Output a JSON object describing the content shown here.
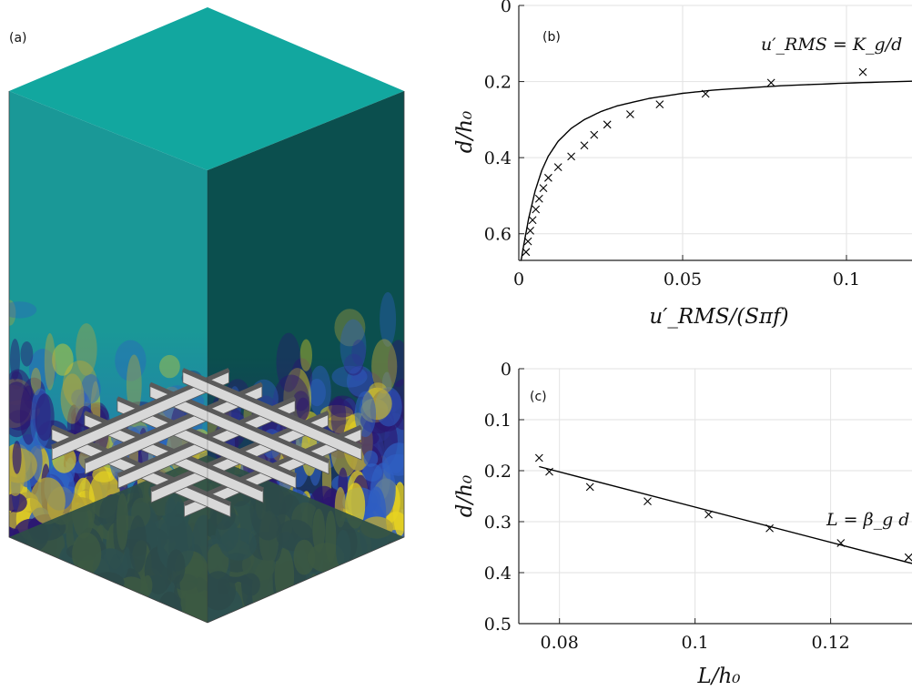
{
  "panel_a": {
    "label": "(a)",
    "colors": {
      "top_face": "#12a79f",
      "left_face": "#1a9897",
      "right_face": "#0b4f4e",
      "bottom_face": "#2c4e45",
      "turbulence_dark": "#2b1670",
      "turbulence_mid": "#2f5ec2",
      "turbulence_warm": "#b6a63a",
      "turbulence_hot": "#e7d320",
      "grid_light": "#d8d8d8",
      "grid_dark": "#5a5a5a"
    }
  },
  "chart_data": [
    {
      "type": "scatter",
      "panel_label": "(b)",
      "xlabel": "u′_RMS/(Sπf)",
      "ylabel": "d/h₀",
      "xlim": [
        0,
        0.12
      ],
      "ylim": [
        0.67,
        0
      ],
      "y_reversed": true,
      "xticks": [
        0,
        0.05,
        0.1
      ],
      "xtick_labels": [
        "0",
        "0.05",
        "0.1"
      ],
      "yticks": [
        0,
        0.2,
        0.4,
        0.6
      ],
      "ytick_labels": [
        "0",
        "0.2",
        "0.4",
        "0.6"
      ],
      "grid": true,
      "marker": "x",
      "annotation": "u′_RMS = K_g/d",
      "series": [
        {
          "kind": "points",
          "x": [
            0.105,
            0.077,
            0.057,
            0.043,
            0.034,
            0.027,
            0.023,
            0.02,
            0.016,
            0.012,
            0.009,
            0.0075,
            0.0062,
            0.0052,
            0.0042,
            0.0035,
            0.0028,
            0.0022
          ],
          "y": [
            0.175,
            0.203,
            0.232,
            0.26,
            0.286,
            0.313,
            0.34,
            0.368,
            0.397,
            0.425,
            0.453,
            0.48,
            0.508,
            0.536,
            0.564,
            0.592,
            0.62,
            0.648
          ]
        },
        {
          "kind": "fit",
          "model": "inverse",
          "x": [
            0.12,
            0.1,
            0.08,
            0.06,
            0.05,
            0.04,
            0.03,
            0.025,
            0.02,
            0.016,
            0.012,
            0.009,
            0.007,
            0.005,
            0.003,
            0.0015,
            0.0005
          ],
          "y": [
            0.199,
            0.204,
            0.211,
            0.222,
            0.231,
            0.244,
            0.264,
            0.279,
            0.3,
            0.323,
            0.357,
            0.396,
            0.434,
            0.487,
            0.56,
            0.63,
            0.68
          ]
        }
      ]
    },
    {
      "type": "scatter",
      "panel_label": "(c)",
      "xlabel": "L/h₀",
      "ylabel": "d/h₀",
      "xlim": [
        0.074,
        0.132
      ],
      "ylim": [
        0.5,
        0
      ],
      "y_reversed": true,
      "xticks": [
        0.08,
        0.1,
        0.12
      ],
      "xtick_labels": [
        "0.08",
        "0.1",
        "0.12"
      ],
      "yticks": [
        0,
        0.1,
        0.2,
        0.3,
        0.4,
        0.5
      ],
      "ytick_labels": [
        "0",
        "0.1",
        "0.2",
        "0.3",
        "0.4",
        "0.5"
      ],
      "grid": true,
      "marker": "x",
      "annotation": "L = β_g d",
      "series": [
        {
          "kind": "points",
          "x": [
            0.077,
            0.0785,
            0.0845,
            0.093,
            0.102,
            0.111,
            0.1215,
            0.1315
          ],
          "y": [
            0.175,
            0.202,
            0.232,
            0.26,
            0.286,
            0.313,
            0.342,
            0.37
          ]
        },
        {
          "kind": "fit",
          "model": "linear",
          "x": [
            0.077,
            0.132
          ],
          "y": [
            0.192,
            0.382
          ]
        }
      ]
    }
  ]
}
